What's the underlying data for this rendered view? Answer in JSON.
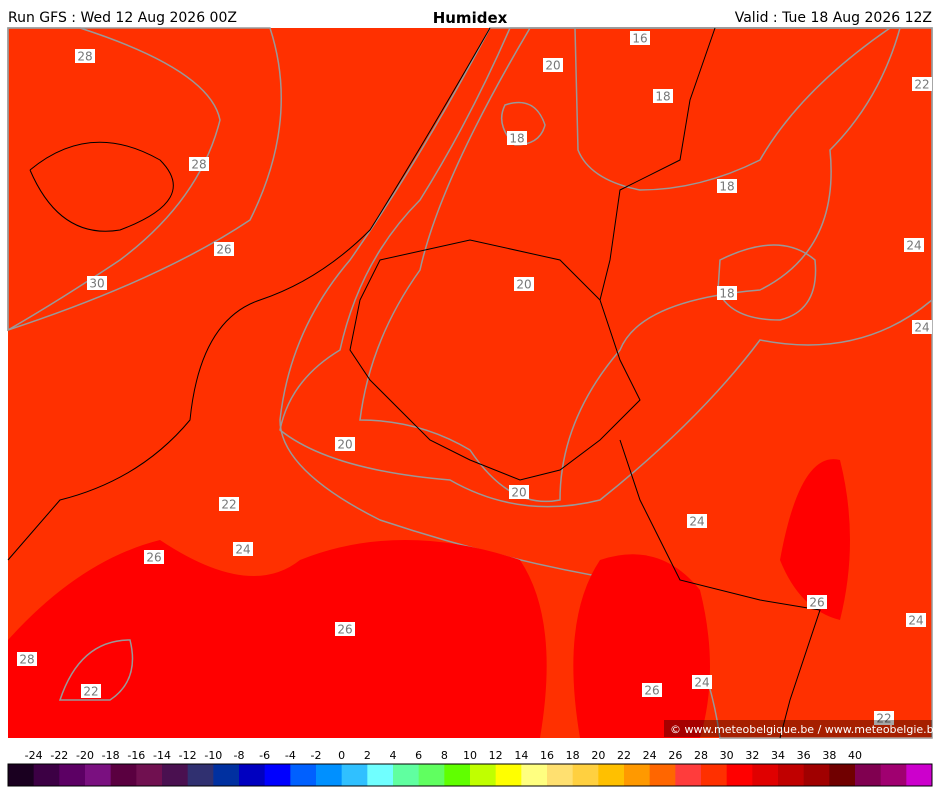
{
  "header": {
    "run": "Run GFS : Wed 12 Aug 2026 00Z",
    "title": "Humidex",
    "valid": "Valid : Tue 18 Aug 2026 12Z"
  },
  "contour_labels": [
    "28",
    "28",
    "26",
    "30",
    "20",
    "16",
    "18",
    "22",
    "18",
    "18",
    "24",
    "20",
    "18",
    "24",
    "20",
    "20",
    "22",
    "24",
    "24",
    "26",
    "26",
    "24",
    "26",
    "28",
    "22",
    "26",
    "24",
    "22"
  ],
  "copyright": "© www.meteobelgique.be / www.meteobelgie.be",
  "colorbar": {
    "ticks": [
      -24,
      -22,
      -20,
      -18,
      -16,
      -14,
      -12,
      -10,
      -8,
      -6,
      -4,
      -2,
      0,
      2,
      4,
      6,
      8,
      10,
      12,
      14,
      16,
      18,
      20,
      22,
      24,
      26,
      28,
      30,
      32,
      34,
      36,
      38,
      40
    ],
    "colors": [
      "#1a0020",
      "#3c0044",
      "#5c0064",
      "#7a1080",
      "#5a0040",
      "#701050",
      "#4a1050",
      "#303070",
      "#0030a0",
      "#0000c0",
      "#0000ff",
      "#0060ff",
      "#0090ff",
      "#30c0ff",
      "#70ffff",
      "#60ffa0",
      "#60ff60",
      "#60ff00",
      "#c0ff00",
      "#ffff00",
      "#ffff80",
      "#ffe070",
      "#ffd040",
      "#ffc000",
      "#ff9900",
      "#ff6600",
      "#ff3c3c",
      "#ff3000",
      "#ff0000",
      "#e00000",
      "#c00000",
      "#a00000",
      "#700000",
      "#800050",
      "#a00070",
      "#cc00cc"
    ]
  }
}
